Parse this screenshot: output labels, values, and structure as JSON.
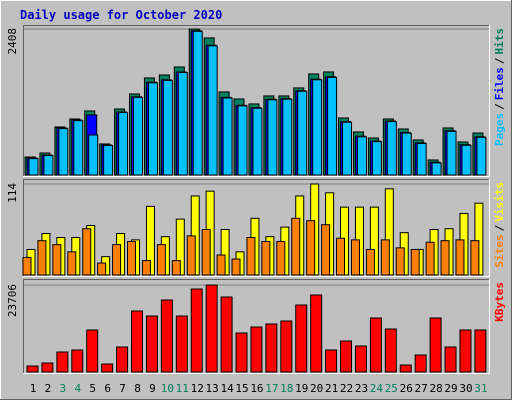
{
  "chart_data": [
    {
      "type": "bar",
      "title": "Daily usage for October 2020",
      "legend_separator": "/",
      "series": [
        {
          "name": "Hits",
          "color": "#00805c",
          "values": [
            297,
            363,
            792,
            924,
            1056,
            512,
            1089,
            1337,
            1601,
            1650,
            1782,
            2408,
            2261,
            1370,
            1254,
            1172,
            1304,
            1304,
            1436,
            1667,
            1700,
            941,
            710,
            611,
            924,
            759,
            578,
            248,
            776,
            545,
            693
          ]
        },
        {
          "name": "Files",
          "color": "#0000ff",
          "values": [
            280,
            330,
            775,
            907,
            990,
            495,
            1040,
            1290,
            1530,
            1570,
            1700,
            2380,
            2140,
            1280,
            1150,
            1110,
            1250,
            1260,
            1390,
            1580,
            1620,
            880,
            640,
            560,
            890,
            700,
            530,
            210,
            730,
            500,
            630
          ]
        },
        {
          "name": "Pages",
          "color": "#00c0ff",
          "values": [
            270,
            320,
            765,
            897,
            660,
            485,
            1030,
            1280,
            1520,
            1560,
            1690,
            2370,
            2130,
            1270,
            1140,
            1100,
            1240,
            1250,
            1380,
            1570,
            1610,
            870,
            630,
            550,
            880,
            690,
            520,
            200,
            720,
            490,
            620
          ]
        }
      ],
      "ylim": [
        0,
        2408
      ],
      "yticks": [
        2408
      ]
    },
    {
      "type": "bar",
      "series": [
        {
          "name": "Visits",
          "color": "#ffff00",
          "values": [
            32,
            52,
            47,
            47,
            62,
            23,
            52,
            44,
            86,
            48,
            70,
            99,
            105,
            57,
            29,
            71,
            48,
            60,
            99,
            114,
            103,
            85,
            85,
            85,
            108,
            53,
            32,
            57,
            58,
            77,
            90
          ]
        },
        {
          "name": "Sites",
          "color": "#ff8000",
          "values": [
            22,
            43,
            38,
            29,
            58,
            15,
            38,
            42,
            18,
            38,
            18,
            49,
            57,
            25,
            20,
            47,
            42,
            42,
            71,
            68,
            63,
            46,
            44,
            32,
            44,
            34,
            32,
            41,
            43,
            44,
            43
          ]
        }
      ],
      "ylim": [
        0,
        114
      ],
      "yticks": [
        114
      ]
    },
    {
      "type": "bar",
      "categories": [
        "1",
        "2",
        "3",
        "4",
        "5",
        "6",
        "7",
        "8",
        "9",
        "10",
        "11",
        "12",
        "13",
        "14",
        "15",
        "16",
        "17",
        "18",
        "19",
        "20",
        "21",
        "22",
        "23",
        "24",
        "25",
        "26",
        "27",
        "28",
        "29",
        "30",
        "31"
      ],
      "label_colors": [
        "#000000",
        "#000000",
        "#00805c",
        "#00805c",
        "#000000",
        "#000000",
        "#000000",
        "#000000",
        "#000000",
        "#00805c",
        "#00805c",
        "#000000",
        "#000000",
        "#000000",
        "#000000",
        "#000000",
        "#00805c",
        "#00805c",
        "#000000",
        "#000000",
        "#000000",
        "#000000",
        "#000000",
        "#00805c",
        "#00805c",
        "#000000",
        "#000000",
        "#000000",
        "#000000",
        "#000000",
        "#00805c"
      ],
      "series": [
        {
          "name": "KBytes",
          "color": "#ff0000",
          "values": [
            1635,
            2453,
            5450,
            5995,
            11445,
            2180,
            6813,
            16623,
            15260,
            19620,
            15260,
            22618,
            23706,
            20438,
            10628,
            12263,
            13080,
            13898,
            18258,
            20983,
            5995,
            8448,
            7085,
            14715,
            11718,
            1908,
            4633,
            14715,
            6813,
            11445,
            11445
          ]
        }
      ],
      "ylim": [
        0,
        23706
      ],
      "yticks": [
        23706
      ]
    }
  ]
}
